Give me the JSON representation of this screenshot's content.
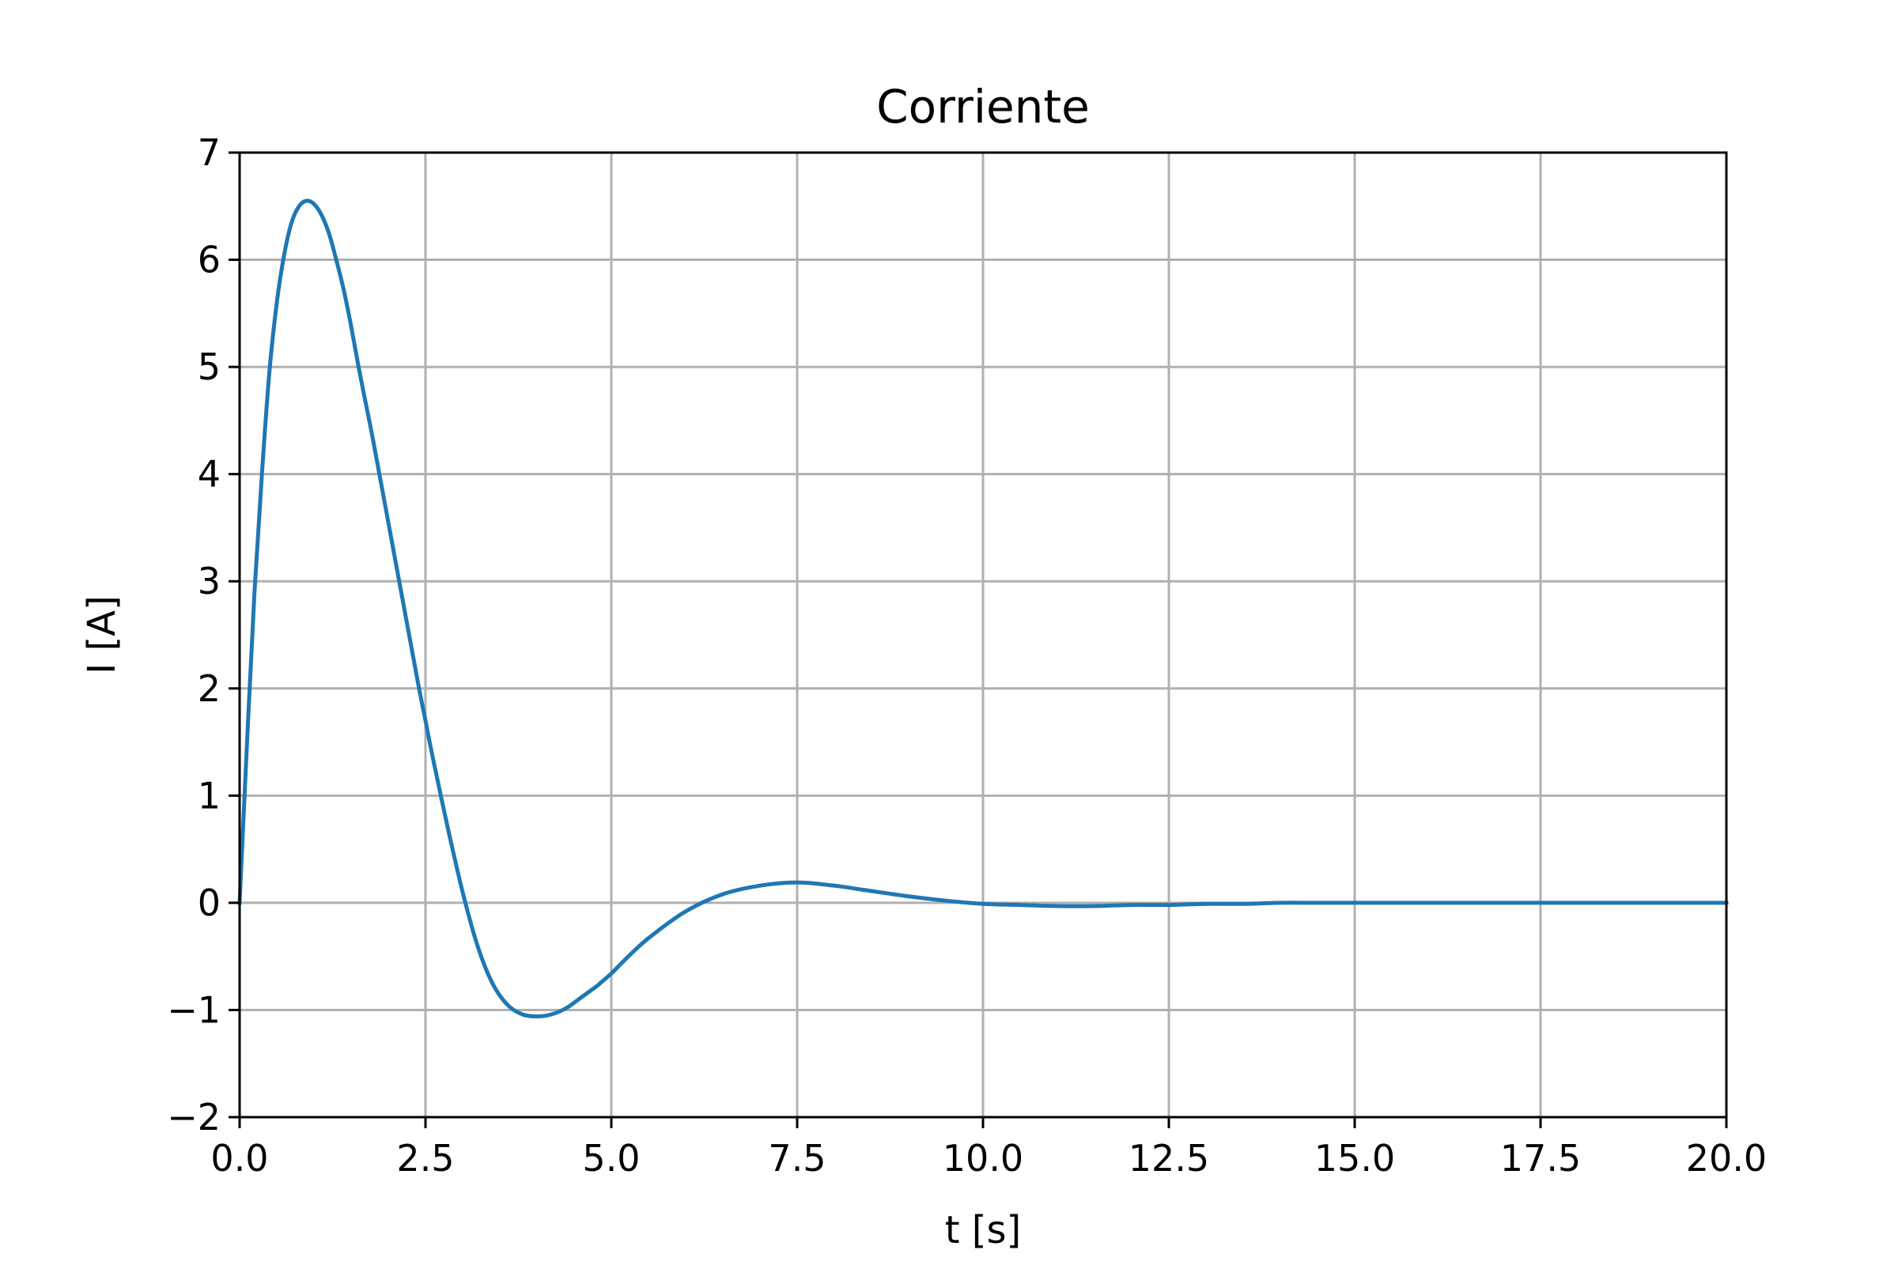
{
  "chart_data": {
    "type": "line",
    "title": "Corriente",
    "xlabel": "t [s]",
    "ylabel": "I [A]",
    "xlim": [
      0,
      20
    ],
    "ylim": [
      -2,
      7
    ],
    "grid": true,
    "colors": {
      "line": "#1f77b4"
    },
    "x_ticks": [
      "0.0",
      "2.5",
      "5.0",
      "7.5",
      "10.0",
      "12.5",
      "15.0",
      "17.5",
      "20.0"
    ],
    "y_ticks": [
      "−2",
      "−1",
      "0",
      "1",
      "2",
      "3",
      "4",
      "5",
      "6",
      "7"
    ],
    "series": [
      {
        "x": [
          0,
          0.1,
          0.2,
          0.3,
          0.4,
          0.5,
          0.6,
          0.7,
          0.8,
          0.9,
          1.0,
          1.1,
          1.2,
          1.3,
          1.4,
          1.5,
          1.6,
          1.7,
          1.8,
          2.0,
          2.2,
          2.4,
          2.5,
          2.6,
          2.8,
          3.0,
          3.2,
          3.4,
          3.6,
          3.8,
          4.0,
          4.2,
          4.4,
          4.6,
          4.8,
          4.85,
          5.0,
          5.2,
          5.5,
          6.0,
          6.5,
          7.0,
          7.5,
          8.0,
          8.4,
          9.0,
          9.5,
          10.0,
          10.5,
          11.0,
          11.5,
          12.0,
          12.5,
          13.0,
          13.5,
          14.0,
          14.5,
          15.0,
          16.0,
          17.0,
          18.0,
          19.0,
          20.0
        ],
        "y": [
          0,
          1.5,
          2.9,
          4.0,
          4.95,
          5.6,
          6.05,
          6.35,
          6.5,
          6.55,
          6.52,
          6.42,
          6.25,
          6.0,
          5.72,
          5.38,
          5.0,
          4.65,
          4.3,
          3.55,
          2.8,
          2.05,
          1.7,
          1.35,
          0.7,
          0.1,
          -0.4,
          -0.75,
          -0.95,
          -1.04,
          -1.06,
          -1.04,
          -0.98,
          -0.88,
          -0.78,
          -0.75,
          -0.66,
          -0.52,
          -0.33,
          -0.08,
          0.08,
          0.16,
          0.19,
          0.16,
          0.12,
          0.06,
          0.02,
          -0.01,
          -0.02,
          -0.03,
          -0.03,
          -0.02,
          -0.02,
          -0.01,
          -0.01,
          0.0,
          0.0,
          0.0,
          0.0,
          0.0,
          0.0,
          0.0,
          0.0
        ]
      }
    ]
  }
}
